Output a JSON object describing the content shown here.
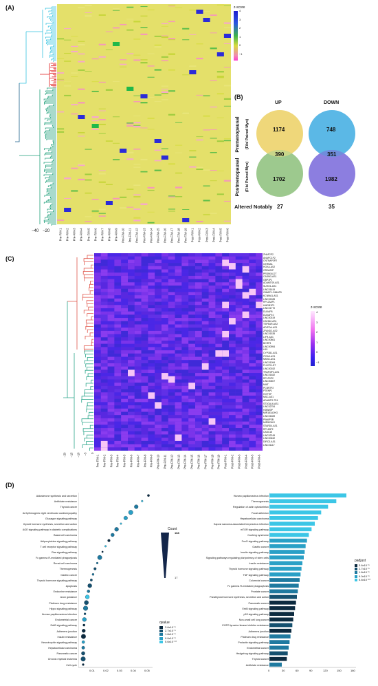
{
  "panels": {
    "a": "(A)",
    "b": "(B)",
    "c": "(C)",
    "d": "(D)"
  },
  "panelA": {
    "scale_title": "z-score",
    "scale_ticks": [
      "4",
      "3",
      "2",
      "1",
      "0",
      "−1"
    ],
    "x_ticks": [
      "−40",
      "−20"
    ],
    "columns": [
      "Pre-F/M-1",
      "Pre-F/M-2",
      "Pre-F/M-3",
      "Pre-F/M-4",
      "Pre-F/M-5",
      "Pre-F/M-6",
      "Pre-F/M-7",
      "Pre-F/M-8",
      "Pre-F/M-9",
      "Pre-F/M-10",
      "Pre-F/M-11",
      "Pre-F/M-12",
      "Pre-F/M-13",
      "Pre-F/M-14",
      "Pre-F/M-15",
      "Pre-F/M-16",
      "Pre-F/M-17",
      "Pre-F/M-18",
      "Pre-F/M-19",
      "Post-F/M-1",
      "Post-F/M-2",
      "Post-F/M-3",
      "Post-F/M-4",
      "Post-F/M-5",
      "Post-F/M-6"
    ]
  },
  "panelB": {
    "up_label": "UP",
    "down_label": "DOWN",
    "row1_label": "Premenopausal",
    "row1_sub": "(Fib/ Paired Myo)",
    "row2_label": "Postmenopausal",
    "row2_sub": "(Fib/ Paired Myo)",
    "up_pre": "1174",
    "up_overlap": "390",
    "up_post": "1702",
    "down_pre": "748",
    "down_overlap": "351",
    "down_post": "1982",
    "altered_label": "Altered Notably",
    "altered_up": "27",
    "altered_down": "35",
    "colors": {
      "yellow": "#efd77a",
      "green": "#a9c98c",
      "cyan": "#5bb8e6",
      "purple": "#7b6fd8",
      "lavender": "#9894e8"
    }
  },
  "panelC": {
    "scale_title": "z-score",
    "scale_ticks": [
      "4",
      "3",
      "2",
      "1",
      "0",
      "−1"
    ],
    "x_ticks": [
      "−20",
      "−15",
      "−10",
      "−5",
      "0"
    ],
    "genes": [
      "ZNAF2P2",
      "ANAPC1P2",
      "CNTNAP3P2",
      "CERNA1",
      "HOXA-AS2",
      "OR2A20P",
      "PRDM16-DT",
      "CADM3-AS1",
      "GBP1P1",
      "ADAMTS9-AS1",
      "SUHO1-AS1",
      "LINC01619",
      "GIMAP1-GIMAP5",
      "KCNMA1-AS1",
      "LINC02185",
      "RPL23AP1",
      "HMGB1P3",
      "LINC01770",
      "DUXAP8",
      "DUXAP10",
      "LINC00319",
      "CAVIN2-AS1",
      "TSPEAR-AS2",
      "ADIPOA-AS1",
      "ZFAND2-AS2",
      "LINC01535",
      "LIFR-AS1",
      "LINC00861",
      "BCRP3",
      "LINC00954",
      "H19",
      "CYP1B1-AS1",
      "ITGA9-AS1",
      "MKKD-AS1",
      "LINC01094",
      "FLVCR1-DT",
      "LINC00032",
      "TRAF3IP2-AS1",
      "LINC01482",
      "RPLP0P2",
      "LINC00607",
      "MIAT",
      "PCBP2P2",
      "PTENP1",
      "HOTTIP",
      "MSC-AS1",
      "ADAMTS-7P4",
      "ST3GAL6-AS1",
      "LINC02754",
      "H2BW3P",
      "MIR181A2HG",
      "LINC01669",
      "PWWP3B",
      "MIR503HG",
      "STARD4-AS1",
      "RPL15P2",
      "CASC15",
      "LINC02245",
      "LINC00632",
      "DIRC3-AS1",
      "LINC01117"
    ],
    "columns": [
      "Pre-F/M-1",
      "Pre-F/M-2",
      "Pre-F/M-3",
      "Pre-F/M-4",
      "Pre-F/M-5",
      "Pre-F/M-6",
      "Pre-F/M-7",
      "Pre-F/M-8",
      "Pre-F/M-9",
      "Pre-F/M-10",
      "Pre-F/M-11",
      "Pre-F/M-12",
      "Pre-F/M-13",
      "Pre-F/M-14",
      "Pre-F/M-15",
      "Pre-F/M-16",
      "Pre-F/M-17",
      "Pre-F/M-18",
      "Pre-F/M-19",
      "Post-F/M-1",
      "Post-F/M-2",
      "Post-F/M-3",
      "Post-F/M-4",
      "Post-F/M-5",
      "Post-F/M-6"
    ]
  },
  "panelD_left": {
    "pathways": [
      "Aldosterone synthesis and secretion",
      "Antifolate resistance",
      "Thyroid cancer",
      "Arrhythmogenic right ventricular cardiomyopathy",
      "Glucagon signaling pathway",
      "thyroid hormone synthesis, secretion and action",
      "AGE signaling pathway in diabetic complications",
      "Basal cell carcinoma",
      "Adipocytokine signaling pathway",
      "T cell receptor signaling pathway",
      "Ras signaling pathway",
      "Fc gamma R-mediated phagocytosis",
      "Renal cell carcinoma",
      "Thermogenesis",
      "Gastric cancer",
      "Thyroid hormone signaling pathway",
      "Apoptosis",
      "Endocrine resistance",
      "Axon guidance",
      "Platinum drug resistance",
      "Hippo signaling pathway",
      "Human papillomavirus infection",
      "Endometrial cancer",
      "ErbB signaling pathway",
      "Adherens junction",
      "Insulin resistance",
      "Neurotrophin signaling pathway",
      "Hepatocellular carcinoma",
      "Pancreatic cancer",
      "Chronic myeloid leukemia",
      "Cell cycle"
    ],
    "x_ticks": [
      "0.01",
      "0.02",
      "0.03",
      "0.04",
      "0.05"
    ],
    "count_title": "Count",
    "count_max": "168",
    "count_min": "17",
    "qvalue_title": "qvalue",
    "qvalue_items": [
      "3.6x10⁻⁵",
      "2.7x10⁻⁵",
      "1.8x10⁻⁵",
      "9.0x10⁻⁶",
      "5.6x10⁻¹⁰"
    ]
  },
  "panelD_right": {
    "pathways": [
      "Human papillomavirus infection",
      "Thermogenesis",
      "Regulation of actin cytoskeleton",
      "Focal adhesion",
      "Hepatocellular carcinoma",
      "Kaposi sarcoma-associated herpesvirus infection",
      "mTOR signaling pathway",
      "Cushing syndrome",
      "FoxO signaling pathway",
      "Gastric cancer",
      "Insulin signaling pathway",
      "Signaling pathways regulating pluripotency of stem cells",
      "Insulin resistance",
      "Thyroid hormone signaling pathway",
      "TNF signaling pathway",
      "Colorectal cancer",
      "Fc gamma R-mediated phagocytosis",
      "Prostate cancer",
      "Parathyroid hormone synthesis, secretion and action",
      "Pancreatic cancer",
      "ErbB signaling pathway",
      "p53 signaling pathway",
      "Non-small cell lung cancer",
      "EGFR tyrosine kinase inhibitor resistance",
      "Adherens junction",
      "Platinum drug resistance",
      "Prolactin signaling pathway",
      "Endometrial cancer",
      "Hedgehog signaling pathway",
      "Thyroid cancer",
      "Antifolate resistance"
    ],
    "values": [
      168,
      146,
      128,
      113,
      106,
      99,
      92,
      86,
      82,
      79,
      77,
      75,
      72,
      70,
      68,
      66,
      64,
      62,
      60,
      58,
      56,
      54,
      52,
      50,
      48,
      46,
      44,
      42,
      40,
      38,
      27
    ],
    "x_ticks": [
      "0",
      "30",
      "60",
      "90",
      "120",
      "150",
      "180"
    ],
    "padj_title": "padjust",
    "padj_items": [
      "3.6x10⁻⁵",
      "2.7x10⁻⁵",
      "1.8x10⁻⁵",
      "9.0x10⁻⁶",
      "5.6x10⁻¹⁰"
    ]
  }
}
